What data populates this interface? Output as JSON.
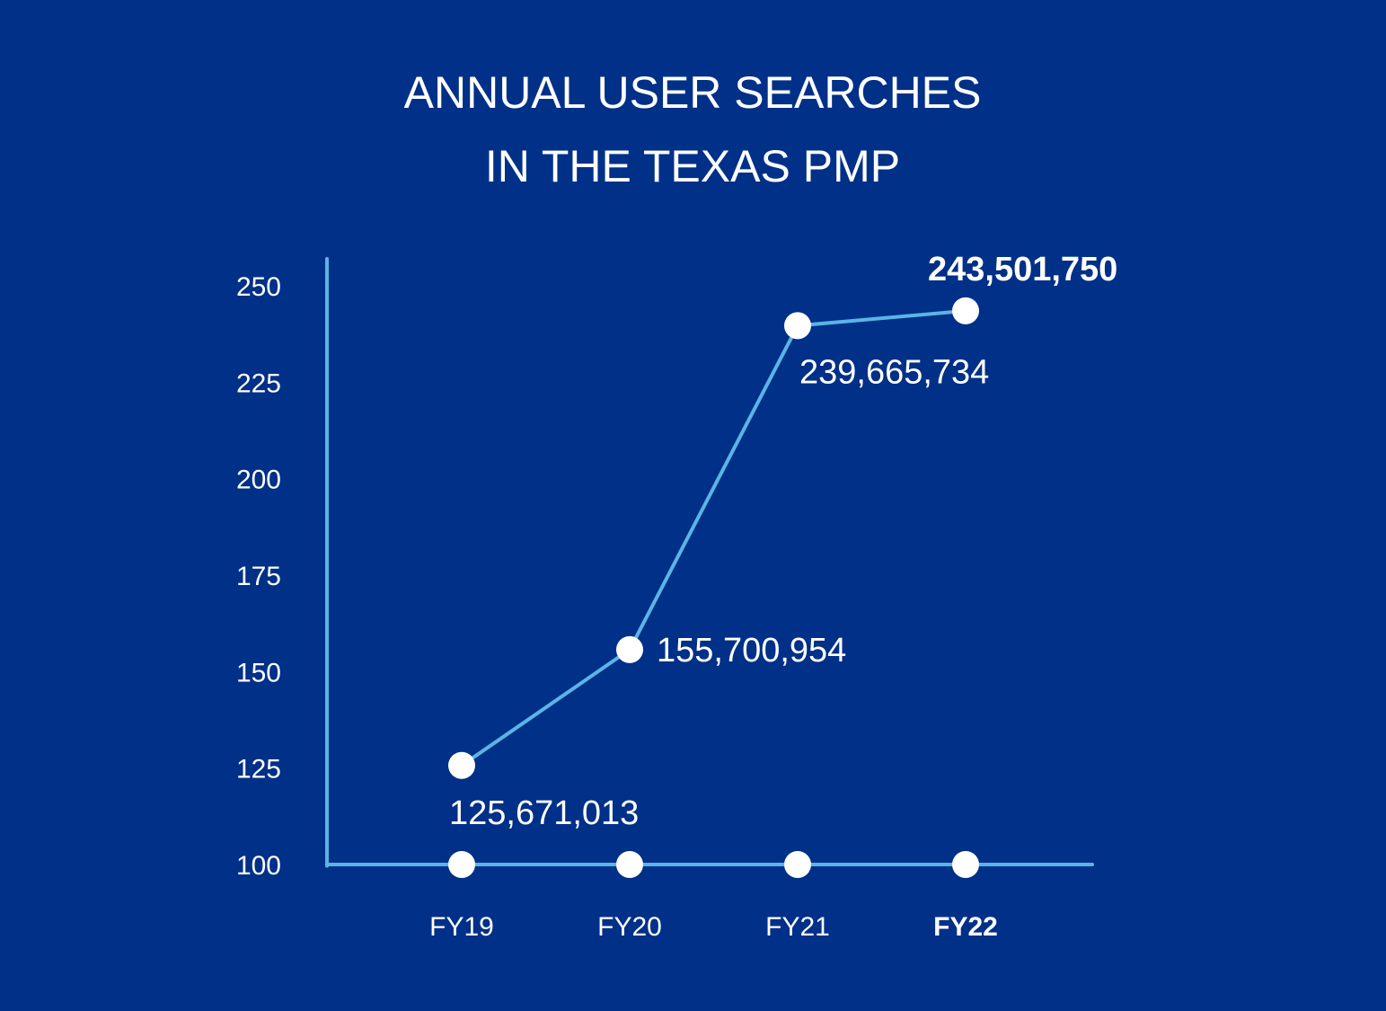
{
  "chart_data": {
    "type": "line",
    "title_lines": [
      "ANNUAL USER SEARCHES",
      "IN THE TEXAS PMP"
    ],
    "xlabel": "",
    "ylabel": "",
    "categories": [
      "FY19",
      "FY20",
      "FY21",
      "FY22"
    ],
    "highlight_category": "FY22",
    "ylim": [
      100,
      250
    ],
    "yticks": [
      "250",
      "225",
      "200",
      "175",
      "150",
      "125",
      "100"
    ],
    "series": [
      {
        "values": [
          125.671013,
          155.700954,
          239.665734,
          243.50175
        ],
        "data_labels": [
          "125,671,013",
          "155,700,954",
          "239,665,734",
          "243,501,750"
        ]
      }
    ],
    "grid": false,
    "colors": {
      "background": "#003087",
      "line": "#5BB4E6",
      "marker": "#ffffff",
      "text": "#ffffff"
    }
  }
}
